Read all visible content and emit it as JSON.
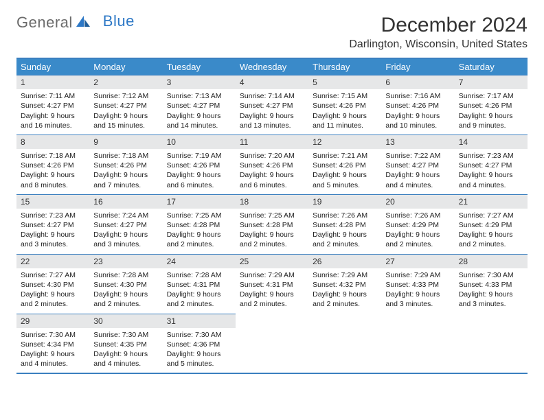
{
  "logo": {
    "word1": "General",
    "word2": "Blue"
  },
  "title": "December 2024",
  "location": "Darlington, Wisconsin, United States",
  "colors": {
    "header_bg": "#3a8ac9",
    "header_text": "#ffffff",
    "border": "#3a7fbf",
    "daynum_bg": "#e6e7e8",
    "text": "#222222",
    "logo_gray": "#6b6b6b",
    "logo_blue": "#2d78c6",
    "page_bg": "#ffffff"
  },
  "typography": {
    "title_fontsize": 30,
    "location_fontsize": 16,
    "dayheader_fontsize": 13,
    "cell_fontsize": 10.5,
    "daynum_fontsize": 12
  },
  "calendar": {
    "type": "table",
    "columns": [
      "Sunday",
      "Monday",
      "Tuesday",
      "Wednesday",
      "Thursday",
      "Friday",
      "Saturday"
    ],
    "weeks": [
      [
        {
          "day": 1,
          "sunrise": "7:11 AM",
          "sunset": "4:27 PM",
          "daylight": "9 hours and 16 minutes."
        },
        {
          "day": 2,
          "sunrise": "7:12 AM",
          "sunset": "4:27 PM",
          "daylight": "9 hours and 15 minutes."
        },
        {
          "day": 3,
          "sunrise": "7:13 AM",
          "sunset": "4:27 PM",
          "daylight": "9 hours and 14 minutes."
        },
        {
          "day": 4,
          "sunrise": "7:14 AM",
          "sunset": "4:27 PM",
          "daylight": "9 hours and 13 minutes."
        },
        {
          "day": 5,
          "sunrise": "7:15 AM",
          "sunset": "4:26 PM",
          "daylight": "9 hours and 11 minutes."
        },
        {
          "day": 6,
          "sunrise": "7:16 AM",
          "sunset": "4:26 PM",
          "daylight": "9 hours and 10 minutes."
        },
        {
          "day": 7,
          "sunrise": "7:17 AM",
          "sunset": "4:26 PM",
          "daylight": "9 hours and 9 minutes."
        }
      ],
      [
        {
          "day": 8,
          "sunrise": "7:18 AM",
          "sunset": "4:26 PM",
          "daylight": "9 hours and 8 minutes."
        },
        {
          "day": 9,
          "sunrise": "7:18 AM",
          "sunset": "4:26 PM",
          "daylight": "9 hours and 7 minutes."
        },
        {
          "day": 10,
          "sunrise": "7:19 AM",
          "sunset": "4:26 PM",
          "daylight": "9 hours and 6 minutes."
        },
        {
          "day": 11,
          "sunrise": "7:20 AM",
          "sunset": "4:26 PM",
          "daylight": "9 hours and 6 minutes."
        },
        {
          "day": 12,
          "sunrise": "7:21 AM",
          "sunset": "4:26 PM",
          "daylight": "9 hours and 5 minutes."
        },
        {
          "day": 13,
          "sunrise": "7:22 AM",
          "sunset": "4:27 PM",
          "daylight": "9 hours and 4 minutes."
        },
        {
          "day": 14,
          "sunrise": "7:23 AM",
          "sunset": "4:27 PM",
          "daylight": "9 hours and 4 minutes."
        }
      ],
      [
        {
          "day": 15,
          "sunrise": "7:23 AM",
          "sunset": "4:27 PM",
          "daylight": "9 hours and 3 minutes."
        },
        {
          "day": 16,
          "sunrise": "7:24 AM",
          "sunset": "4:27 PM",
          "daylight": "9 hours and 3 minutes."
        },
        {
          "day": 17,
          "sunrise": "7:25 AM",
          "sunset": "4:28 PM",
          "daylight": "9 hours and 2 minutes."
        },
        {
          "day": 18,
          "sunrise": "7:25 AM",
          "sunset": "4:28 PM",
          "daylight": "9 hours and 2 minutes."
        },
        {
          "day": 19,
          "sunrise": "7:26 AM",
          "sunset": "4:28 PM",
          "daylight": "9 hours and 2 minutes."
        },
        {
          "day": 20,
          "sunrise": "7:26 AM",
          "sunset": "4:29 PM",
          "daylight": "9 hours and 2 minutes."
        },
        {
          "day": 21,
          "sunrise": "7:27 AM",
          "sunset": "4:29 PM",
          "daylight": "9 hours and 2 minutes."
        }
      ],
      [
        {
          "day": 22,
          "sunrise": "7:27 AM",
          "sunset": "4:30 PM",
          "daylight": "9 hours and 2 minutes."
        },
        {
          "day": 23,
          "sunrise": "7:28 AM",
          "sunset": "4:30 PM",
          "daylight": "9 hours and 2 minutes."
        },
        {
          "day": 24,
          "sunrise": "7:28 AM",
          "sunset": "4:31 PM",
          "daylight": "9 hours and 2 minutes."
        },
        {
          "day": 25,
          "sunrise": "7:29 AM",
          "sunset": "4:31 PM",
          "daylight": "9 hours and 2 minutes."
        },
        {
          "day": 26,
          "sunrise": "7:29 AM",
          "sunset": "4:32 PM",
          "daylight": "9 hours and 2 minutes."
        },
        {
          "day": 27,
          "sunrise": "7:29 AM",
          "sunset": "4:33 PM",
          "daylight": "9 hours and 3 minutes."
        },
        {
          "day": 28,
          "sunrise": "7:30 AM",
          "sunset": "4:33 PM",
          "daylight": "9 hours and 3 minutes."
        }
      ],
      [
        {
          "day": 29,
          "sunrise": "7:30 AM",
          "sunset": "4:34 PM",
          "daylight": "9 hours and 4 minutes."
        },
        {
          "day": 30,
          "sunrise": "7:30 AM",
          "sunset": "4:35 PM",
          "daylight": "9 hours and 4 minutes."
        },
        {
          "day": 31,
          "sunrise": "7:30 AM",
          "sunset": "4:36 PM",
          "daylight": "9 hours and 5 minutes."
        },
        null,
        null,
        null,
        null
      ]
    ],
    "labels": {
      "sunrise": "Sunrise:",
      "sunset": "Sunset:",
      "daylight": "Daylight:"
    }
  }
}
